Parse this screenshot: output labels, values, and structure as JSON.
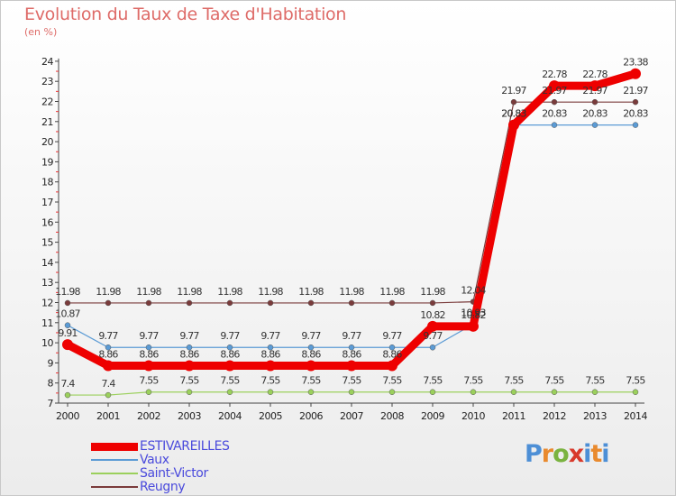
{
  "title": "Evolution du Taux de Taxe d'Habitation",
  "subtitle": "(en %)",
  "logo": "Proxiti",
  "chart_data": {
    "type": "line",
    "title": "Evolution du Taux de Taxe d'Habitation",
    "ylabel": "(en %)",
    "ylim": [
      7,
      24
    ],
    "yticks": [
      7,
      8,
      9,
      10,
      11,
      12,
      13,
      14,
      15,
      16,
      17,
      18,
      19,
      20,
      21,
      22,
      23,
      24
    ],
    "x": [
      "2000",
      "2001",
      "2002",
      "2003",
      "2004",
      "2005",
      "2006",
      "2007",
      "2008",
      "2009",
      "2010",
      "2011",
      "2012",
      "2013",
      "2014"
    ],
    "legend_position": "bottom-left",
    "series": [
      {
        "name": "ESTIVAREILLES",
        "color": "#ee0000",
        "emphasis": true,
        "values": [
          9.91,
          8.86,
          8.86,
          8.86,
          8.86,
          8.86,
          8.86,
          8.86,
          8.86,
          10.82,
          10.82,
          20.83,
          22.78,
          22.78,
          23.38
        ]
      },
      {
        "name": "Vaux",
        "color": "#5b9bd5",
        "values": [
          10.87,
          9.77,
          9.77,
          9.77,
          9.77,
          9.77,
          9.77,
          9.77,
          9.77,
          9.77,
          10.93,
          20.83,
          20.83,
          20.83,
          20.83
        ]
      },
      {
        "name": "Saint-Victor",
        "color": "#9bd05c",
        "values": [
          7.4,
          7.4,
          7.55,
          7.55,
          7.55,
          7.55,
          7.55,
          7.55,
          7.55,
          7.55,
          7.55,
          7.55,
          7.55,
          7.55,
          7.55
        ]
      },
      {
        "name": "Reugny",
        "color": "#7a3b3b",
        "values": [
          11.98,
          11.98,
          11.98,
          11.98,
          11.98,
          11.98,
          11.98,
          11.98,
          11.98,
          11.98,
          12.04,
          21.97,
          21.97,
          21.97,
          21.97
        ]
      }
    ]
  }
}
